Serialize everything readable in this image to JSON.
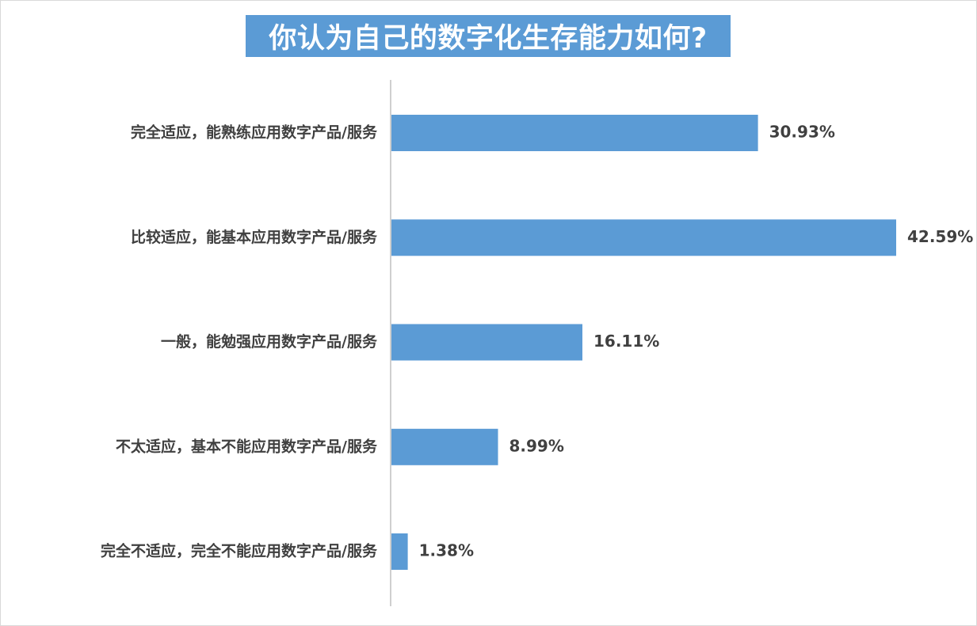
{
  "chart_data": {
    "type": "bar",
    "orientation": "horizontal",
    "title": "你认为自己的数字化生存能力如何?",
    "categories": [
      "完全适应，能熟练应用数字产品/服务",
      "比较适应，能基本应用数字产品/服务",
      "一般，能勉强应用数字产品/服务",
      "不太适应，基本不能应用数字产品/服务",
      "完全不适应，完全不能应用数字产品/服务"
    ],
    "values": [
      30.93,
      42.59,
      16.11,
      8.99,
      1.38
    ],
    "value_labels": [
      "30.93%",
      "42.59%",
      "16.11%",
      "8.99%",
      "1.38%"
    ],
    "unit": "%",
    "xlim": [
      0,
      42.59
    ],
    "grid": false,
    "legend": "none",
    "bar_color": "#5b9bd5",
    "title_background": "#5b9bd5",
    "title_color": "#ffffff",
    "label_color": "#404040"
  }
}
